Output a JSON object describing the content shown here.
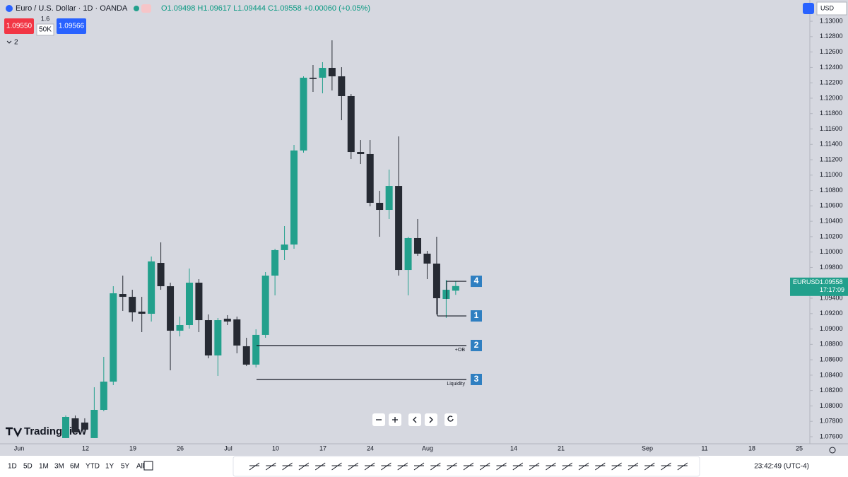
{
  "header": {
    "symbol": "Euro / U.S. Dollar · 1D · OANDA",
    "ohlc": "O1.09498 H1.09617 L1.09444 C1.09558 +0.00060 (+0.05%)",
    "sell": "1.09550",
    "spread": "1.6",
    "qty": "50K",
    "buy": "1.09566",
    "indicators": "2",
    "currency": "USD"
  },
  "logo": "TradingView",
  "price_tag": {
    "symbol": "EURUSD",
    "price": "1.09558",
    "countdown": "17:17:09"
  },
  "x_labels": [
    "Jun",
    "12",
    "19",
    "26",
    "Jul",
    "10",
    "17",
    "24",
    "Aug",
    "14",
    "21",
    "Sep",
    "11",
    "18",
    "25"
  ],
  "ranges": [
    "1D",
    "5D",
    "1M",
    "3M",
    "6M",
    "YTD",
    "1Y",
    "5Y",
    "All"
  ],
  "clock": "23:42:49 (UTC-4)",
  "chart_data": {
    "type": "candlestick",
    "up_color": "#22a08c",
    "down_color": "#262a33",
    "open": [
      1.07582,
      1.07839,
      1.07784,
      1.07582,
      1.07949,
      1.08316,
      1.09455,
      1.09418,
      1.09226,
      1.09198,
      1.09859,
      1.09556,
      1.08978,
      1.09051,
      1.09602,
      1.09115,
      1.08656,
      1.09134,
      1.09125,
      1.08776,
      1.08537,
      1.08923,
      1.09694,
      1.10025,
      1.10098,
      1.1132,
      1.12266,
      1.12266,
      1.12394,
      1.12284,
      1.12027,
      1.11301,
      1.11274,
      1.1064,
      1.10548,
      1.1086,
      1.09767,
      1.10181,
      1.09979,
      1.0985,
      1.09391,
      1.09498
    ],
    "high": [
      1.07876,
      1.07876,
      1.07839,
      1.08243,
      1.08638,
      1.09556,
      1.09694,
      1.0951,
      1.09418,
      1.09942,
      1.10126,
      1.09602,
      1.09161,
      1.09786,
      1.09648,
      1.09189,
      1.09143,
      1.0918,
      1.09161,
      1.08886,
      1.08996,
      1.0974,
      1.10043,
      1.10337,
      1.11393,
      1.12284,
      1.12431,
      1.12468,
      1.12752,
      1.12403,
      1.12054,
      1.11457,
      1.11457,
      1.10796,
      1.11072,
      1.11503,
      1.10199,
      1.10429,
      1.10015,
      1.10199,
      1.09639,
      1.09617
    ],
    "low": [
      1.07582,
      1.07655,
      1.07655,
      1.07582,
      1.07931,
      1.0827,
      1.09235,
      1.09097,
      1.08959,
      1.09097,
      1.0951,
      1.08463,
      1.08904,
      1.09005,
      1.08959,
      1.08619,
      1.0839,
      1.09051,
      1.08684,
      1.08518,
      1.085,
      1.08886,
      1.09437,
      1.09896,
      1.10043,
      1.11292,
      1.12082,
      1.12063,
      1.121,
      1.11714,
      1.11209,
      1.11145,
      1.10594,
      1.10199,
      1.10429,
      1.09694,
      1.09437,
      1.09951,
      1.09648,
      1.09189,
      1.09143,
      1.09444
    ],
    "close": [
      1.07857,
      1.07655,
      1.07692,
      1.07949,
      1.08316,
      1.09464,
      1.09418,
      1.09216,
      1.09198,
      1.09878,
      1.09556,
      1.08978,
      1.09051,
      1.09602,
      1.09115,
      1.08656,
      1.09115,
      1.09097,
      1.08785,
      1.08537,
      1.08923,
      1.09694,
      1.10025,
      1.10098,
      1.1132,
      1.12266,
      1.1225,
      1.12394,
      1.12284,
      1.12027,
      1.11301,
      1.11274,
      1.1064,
      1.10548,
      1.1086,
      1.09767,
      1.10181,
      1.09979,
      1.0985,
      1.094,
      1.0951,
      1.09558
    ],
    "ylim": [
      1.07508,
      1.13276
    ],
    "yticks": [
      {
        "value": 1.13,
        "label": "1.13000"
      },
      {
        "value": 1.128,
        "label": "1.12800"
      },
      {
        "value": 1.126,
        "label": "1.12600"
      },
      {
        "value": 1.124,
        "label": "1.12400"
      },
      {
        "value": 1.122,
        "label": "1.12200"
      },
      {
        "value": 1.12,
        "label": "1.12000"
      },
      {
        "value": 1.118,
        "label": "1.11800"
      },
      {
        "value": 1.116,
        "label": "1.11600"
      },
      {
        "value": 1.114,
        "label": "1.11400"
      },
      {
        "value": 1.112,
        "label": "1.11200"
      },
      {
        "value": 1.11,
        "label": "1.11000"
      },
      {
        "value": 1.108,
        "label": "1.10800"
      },
      {
        "value": 1.106,
        "label": "1.10600"
      },
      {
        "value": 1.104,
        "label": "1.10400"
      },
      {
        "value": 1.102,
        "label": "1.10200"
      },
      {
        "value": 1.1,
        "label": "1.10000"
      },
      {
        "value": 1.098,
        "label": "1.09800"
      },
      {
        "value": 1.094,
        "label": "1.09400"
      },
      {
        "value": 1.092,
        "label": "1.09200"
      },
      {
        "value": 1.09,
        "label": "1.09000"
      },
      {
        "value": 1.088,
        "label": "1.08800"
      },
      {
        "value": 1.086,
        "label": "1.08600"
      },
      {
        "value": 1.084,
        "label": "1.08400"
      },
      {
        "value": 1.082,
        "label": "1.08200"
      },
      {
        "value": 1.08,
        "label": "1.08000"
      },
      {
        "value": 1.078,
        "label": "1.07800"
      },
      {
        "value": 1.076,
        "label": "1.07600"
      }
    ],
    "annotations": [
      {
        "label": "4",
        "value": 1.0962
      },
      {
        "label": "1",
        "value": 1.0917
      },
      {
        "label": "2",
        "value": 1.08785,
        "tag": "+OB"
      },
      {
        "label": "3",
        "value": 1.08344,
        "tag": "Liquidity"
      }
    ]
  }
}
